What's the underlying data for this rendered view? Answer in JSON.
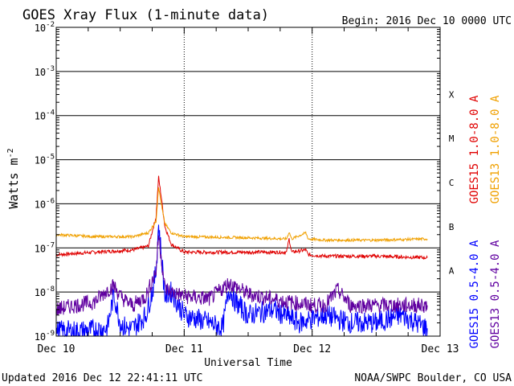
{
  "chart_data": {
    "type": "line",
    "title": "GOES Xray Flux (1-minute data)",
    "begin_label": "Begin:  2016 Dec 10 0000 UTC",
    "xlabel": "Universal Time",
    "ylabel": "Watts m",
    "ylabel_sup": "-2",
    "y_scale": "log",
    "ylim": [
      1e-09,
      0.01
    ],
    "y_ticks": [
      {
        "base": "10",
        "exp": "-9"
      },
      {
        "base": "10",
        "exp": "-8"
      },
      {
        "base": "10",
        "exp": "-7"
      },
      {
        "base": "10",
        "exp": "-6"
      },
      {
        "base": "10",
        "exp": "-5"
      },
      {
        "base": "10",
        "exp": "-4"
      },
      {
        "base": "10",
        "exp": "-3"
      },
      {
        "base": "10",
        "exp": "-2"
      }
    ],
    "x_unit": "days since 2016 Dec 10 0000 UTC",
    "xlim": [
      0,
      3
    ],
    "x_ticks": [
      {
        "label": "Dec 10",
        "day": 0
      },
      {
        "label": "Dec 11",
        "day": 1
      },
      {
        "label": "Dec 12",
        "day": 2
      },
      {
        "label": "Dec 13",
        "day": 3
      }
    ],
    "flare_classes": [
      {
        "label": "A",
        "flux": 3.16e-08
      },
      {
        "label": "B",
        "flux": 3.16e-07
      },
      {
        "label": "C",
        "flux": 3.16e-06
      },
      {
        "label": "M",
        "flux": 3.16e-05
      },
      {
        "label": "X",
        "flux": 0.000316
      }
    ],
    "grid": "horizontal at each decade, dotted vertical at day boundaries",
    "series": [
      {
        "name": "GOES15 1.0-8.0 A",
        "color": "#e00000",
        "x": [
          0,
          0.3,
          0.6,
          0.72,
          0.78,
          0.8,
          0.82,
          0.85,
          0.9,
          1.0,
          1.5,
          1.8,
          1.82,
          1.84,
          1.95,
          1.97,
          2.1,
          2.5,
          2.9
        ],
        "y": [
          7e-08,
          8e-08,
          9e-08,
          1.1e-07,
          5e-07,
          4e-06,
          1.5e-06,
          3e-07,
          1.2e-07,
          8e-08,
          8e-08,
          8e-08,
          1.6e-07,
          8e-08,
          9e-08,
          7e-08,
          6.5e-08,
          6.5e-08,
          6e-08
        ]
      },
      {
        "name": "GOES13 1.0-8.0 A",
        "color": "#f0a000",
        "x": [
          0,
          0.3,
          0.6,
          0.72,
          0.78,
          0.8,
          0.82,
          0.85,
          0.9,
          1.0,
          1.5,
          1.8,
          1.82,
          1.84,
          1.95,
          1.97,
          2.1,
          2.5,
          2.9
        ],
        "y": [
          2e-07,
          1.8e-07,
          1.8e-07,
          2.2e-07,
          4e-07,
          2.5e-06,
          1e-06,
          3.5e-07,
          2.2e-07,
          1.8e-07,
          1.7e-07,
          1.6e-07,
          2.3e-07,
          1.6e-07,
          2.2e-07,
          1.6e-07,
          1.5e-07,
          1.5e-07,
          1.6e-07
        ]
      },
      {
        "name": "GOES15 0.5-4.0 A",
        "color": "#0000ff",
        "x": [
          0,
          0.2,
          0.4,
          0.45,
          0.5,
          0.55,
          0.6,
          0.7,
          0.75,
          0.78,
          0.8,
          0.85,
          0.9,
          1.0,
          1.2,
          1.3,
          1.35,
          1.4,
          1.5,
          1.7,
          1.9,
          2.1,
          2.3,
          2.5,
          2.7,
          2.9
        ],
        "y": [
          1.3e-09,
          1.3e-09,
          1.5e-09,
          9e-09,
          2e-09,
          1.5e-09,
          1.5e-09,
          3e-09,
          1e-08,
          3e-08,
          3.5e-07,
          8e-09,
          1e-08,
          3e-09,
          2e-09,
          1.5e-09,
          1.2e-08,
          6e-09,
          3e-09,
          4e-09,
          2e-09,
          3e-09,
          2e-09,
          2e-09,
          3e-09,
          1.5e-09
        ]
      },
      {
        "name": "GOES13 0.5-4.0 A",
        "color": "#6000a0",
        "x": [
          0,
          0.15,
          0.3,
          0.4,
          0.45,
          0.5,
          0.55,
          0.6,
          0.7,
          0.78,
          0.8,
          0.85,
          0.9,
          1.0,
          1.2,
          1.35,
          1.5,
          1.8,
          2.0,
          2.1,
          2.2,
          2.3,
          2.5,
          2.7,
          2.9
        ],
        "y": [
          4e-09,
          5e-09,
          6e-09,
          1.1e-08,
          1.4e-08,
          8e-09,
          6e-09,
          5e-09,
          8e-09,
          3e-08,
          2e-07,
          1.2e-08,
          1e-08,
          8e-09,
          7e-09,
          1.6e-08,
          9e-09,
          6e-09,
          5e-09,
          5e-09,
          1.1e-08,
          5e-09,
          5e-09,
          5e-09,
          5e-09
        ]
      }
    ]
  },
  "footer": {
    "updated": "Updated 2016 Dec 12 22:41:11 UTC",
    "credit": "NOAA/SWPC Boulder, CO USA"
  }
}
